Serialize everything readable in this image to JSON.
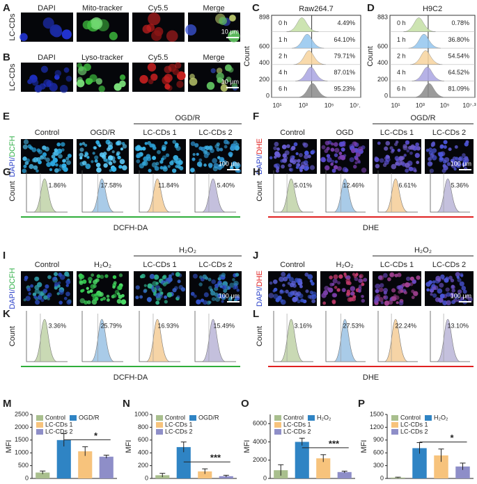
{
  "panels": {
    "A": {
      "label": "A",
      "row_label": "LC-CDs",
      "titles": [
        "DAPI",
        "Mito-tracker",
        "Cy5.5",
        "Merge"
      ],
      "scale": "10 μm"
    },
    "B": {
      "label": "B",
      "row_label": "LC-CDs",
      "titles": [
        "DAPI",
        "Lyso-tracker",
        "Cy5.5",
        "Merge"
      ],
      "scale": "10 μm"
    },
    "C": {
      "label": "C",
      "title": "Raw264.7",
      "y_label": "Count",
      "yticks": [
        898,
        600,
        400,
        200,
        0
      ],
      "rows": [
        "0 h",
        "1 h",
        "2 h",
        "4 h",
        "6 h"
      ],
      "percents": [
        "4.49%",
        "64.10%",
        "79.71%",
        "87.01%",
        "95.23%"
      ],
      "xticks": [
        "10¹",
        "10³",
        "10⁵",
        "10⁷."
      ]
    },
    "D": {
      "label": "D",
      "title": "H9C2",
      "y_label": "Count",
      "yticks": [
        883,
        600,
        400,
        200,
        0
      ],
      "rows": [
        "0 h",
        "1 h",
        "2 h",
        "4 h",
        "6 h"
      ],
      "percents": [
        "0.78%",
        "36.80%",
        "54.54%",
        "64.52%",
        "81.09%"
      ],
      "xticks": [
        "10¹",
        "10³",
        "10⁵",
        "10⁷·³"
      ]
    },
    "E": {
      "label": "E",
      "side_label": [
        "DAPI/",
        "DCFH"
      ],
      "titles": [
        "Control",
        "OGD/R",
        "LC-CDs 1",
        "LC-CDs 2"
      ],
      "group": "OGD/R",
      "scale": "100 μm"
    },
    "F": {
      "label": "F",
      "side_label": [
        "DAPI/",
        "DHE"
      ],
      "titles": [
        "Control",
        "OGD",
        "LC-CDs 1",
        "LC-CDs 2"
      ],
      "group": "OGD/R",
      "scale": "100 μm"
    },
    "G": {
      "label": "G",
      "y_label": "Count",
      "percents": [
        "1.86%",
        "17.58%",
        "11.84%",
        "5.40%"
      ],
      "x_label": "DCFH-DA"
    },
    "H": {
      "label": "H",
      "y_label": "Count",
      "percents": [
        "5.01%",
        "12.46%",
        "6.61%",
        "5.36%"
      ],
      "x_label": "DHE"
    },
    "I": {
      "label": "I",
      "side_label": [
        "DAPI/",
        "DCFH"
      ],
      "titles": [
        "Control",
        "H₂O₂",
        "LC-CDs 1",
        "LC-CDs 2"
      ],
      "group": "H₂O₂",
      "scale": "100 μm"
    },
    "J": {
      "label": "J",
      "side_label": [
        "DAPI/",
        "DHE"
      ],
      "titles": [
        "Control",
        "H₂O₂",
        "LC-CDs 1",
        "LC-CDs 2"
      ],
      "group": "H₂O₂",
      "scale": "100 μm"
    },
    "K": {
      "label": "K",
      "y_label": "Count",
      "percents": [
        "3.36%",
        "25.79%",
        "16.93%",
        "15.49%"
      ],
      "x_label": "DCFH-DA"
    },
    "L": {
      "label": "L",
      "y_label": "Count",
      "percents": [
        "3.16%",
        "27.53%",
        "22.24%",
        "13.10%"
      ],
      "x_label": "DHE"
    }
  },
  "chart_data": [
    {
      "type": "bar",
      "panel_label": "M",
      "y_label": "MFI",
      "categories": [
        "Control",
        "OGD/R",
        "LC-CDs 1",
        "LC-CDs 2"
      ],
      "values": [
        230,
        1500,
        1060,
        850
      ],
      "errors": [
        60,
        250,
        180,
        60
      ],
      "colors": [
        "#a9bf8e",
        "#2f84c4",
        "#f7c37c",
        "#8e8ec8"
      ],
      "ylim": [
        0,
        2500
      ],
      "yticks": [
        0,
        500,
        1000,
        1500,
        2000,
        2500
      ],
      "significance": "*"
    },
    {
      "type": "bar",
      "panel_label": "N",
      "y_label": "MFI",
      "categories": [
        "Control",
        "OGD/R",
        "LC-CDs 1",
        "LC-CDs 2"
      ],
      "values": [
        50,
        490,
        110,
        35
      ],
      "errors": [
        30,
        80,
        40,
        15
      ],
      "colors": [
        "#a9bf8e",
        "#2f84c4",
        "#f7c37c",
        "#8e8ec8"
      ],
      "ylim": [
        0,
        1000
      ],
      "yticks": [
        0,
        200,
        400,
        600,
        800,
        1000
      ],
      "significance": "***"
    },
    {
      "type": "bar",
      "panel_label": "O",
      "y_label": "MFI",
      "categories": [
        "Control",
        "H₂O₂",
        "LC-CDs 1",
        "LC-CDs 2"
      ],
      "values": [
        900,
        4000,
        2200,
        700
      ],
      "errors": [
        600,
        400,
        400,
        100
      ],
      "colors": [
        "#a9bf8e",
        "#2f84c4",
        "#f7c37c",
        "#8e8ec8"
      ],
      "ylim": [
        0,
        7000
      ],
      "yticks": [
        0,
        2000,
        4000,
        6000
      ],
      "significance": "***"
    },
    {
      "type": "bar",
      "panel_label": "P",
      "y_label": "MFI",
      "categories": [
        "Control",
        "H₂O₂",
        "LC-CDs 1",
        "LC-CDs 2"
      ],
      "values": [
        20,
        710,
        540,
        280
      ],
      "errors": [
        10,
        130,
        150,
        80
      ],
      "colors": [
        "#a9bf8e",
        "#2f84c4",
        "#f7c37c",
        "#8e8ec8"
      ],
      "ylim": [
        0,
        1500
      ],
      "yticks": [
        0,
        300,
        600,
        900,
        1200,
        1500
      ],
      "significance": "*"
    }
  ]
}
